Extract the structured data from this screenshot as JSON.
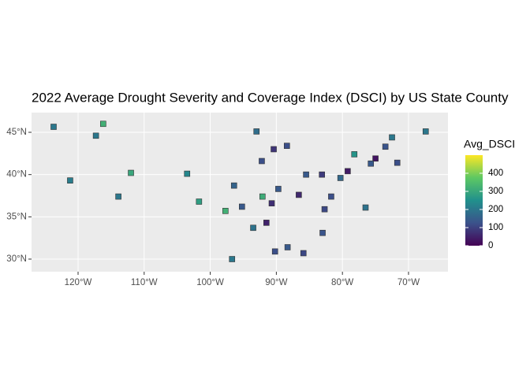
{
  "chart_data": {
    "type": "map",
    "title": "2022 Average Drought Severity and Coverage Index (DSCI) by US State County",
    "xlim": [
      -127.04,
      -64.03
    ],
    "ylim": [
      28.51,
      47.33
    ],
    "xticks": [
      {
        "value": -120,
        "label": "120°W"
      },
      {
        "value": -110,
        "label": "110°W"
      },
      {
        "value": -100,
        "label": "100°W"
      },
      {
        "value": -90,
        "label": "90°W"
      },
      {
        "value": -80,
        "label": "80°W"
      },
      {
        "value": -70,
        "label": "70°W"
      }
    ],
    "yticks": [
      {
        "value": 30,
        "label": "30°N"
      },
      {
        "value": 35,
        "label": "35°N"
      },
      {
        "value": 40,
        "label": "40°N"
      },
      {
        "value": 45,
        "label": "45°N"
      }
    ],
    "grid": true,
    "legend_title": "Avg_DSCI",
    "clim": [
      0,
      500
    ],
    "cticks": [
      0,
      100,
      200,
      300,
      400
    ],
    "colormap": "viridis",
    "lon": [
      -123.7,
      -116.2,
      -117.3,
      -121.2,
      -112.0,
      -113.9,
      -103.5,
      -101.7,
      -97.7,
      -96.7,
      -96.4,
      -93.0,
      -92.2,
      -90.4,
      -88.4,
      -92.1,
      -91.5,
      -93.5,
      -95.2,
      -90.2,
      -88.3,
      -85.9,
      -83.0,
      -85.5,
      -83.1,
      -81.7,
      -82.7,
      -79.2,
      -78.2,
      -75.0,
      -72.5,
      -67.4,
      -71.7,
      -76.5,
      -86.6,
      -89.7,
      -90.7,
      -75.7,
      -73.5,
      -80.3
    ],
    "lat": [
      45.65,
      46.0,
      44.6,
      39.3,
      40.2,
      37.4,
      40.1,
      36.8,
      35.7,
      30.0,
      38.7,
      45.1,
      41.6,
      43.0,
      43.4,
      37.4,
      34.3,
      33.7,
      36.2,
      30.9,
      31.4,
      30.7,
      33.1,
      40.0,
      40.0,
      37.4,
      35.9,
      40.4,
      42.4,
      41.9,
      44.4,
      45.1,
      41.4,
      36.1,
      37.6,
      38.3,
      36.6,
      41.3,
      43.3,
      39.6
    ],
    "values": [
      200,
      320,
      200,
      210,
      300,
      200,
      230,
      280,
      320,
      200,
      160,
      180,
      120,
      80,
      120,
      310,
      50,
      190,
      140,
      120,
      140,
      110,
      130,
      140,
      90,
      120,
      110,
      40,
      260,
      30,
      200,
      200,
      120,
      190,
      60,
      140,
      70,
      140,
      130,
      170
    ]
  }
}
